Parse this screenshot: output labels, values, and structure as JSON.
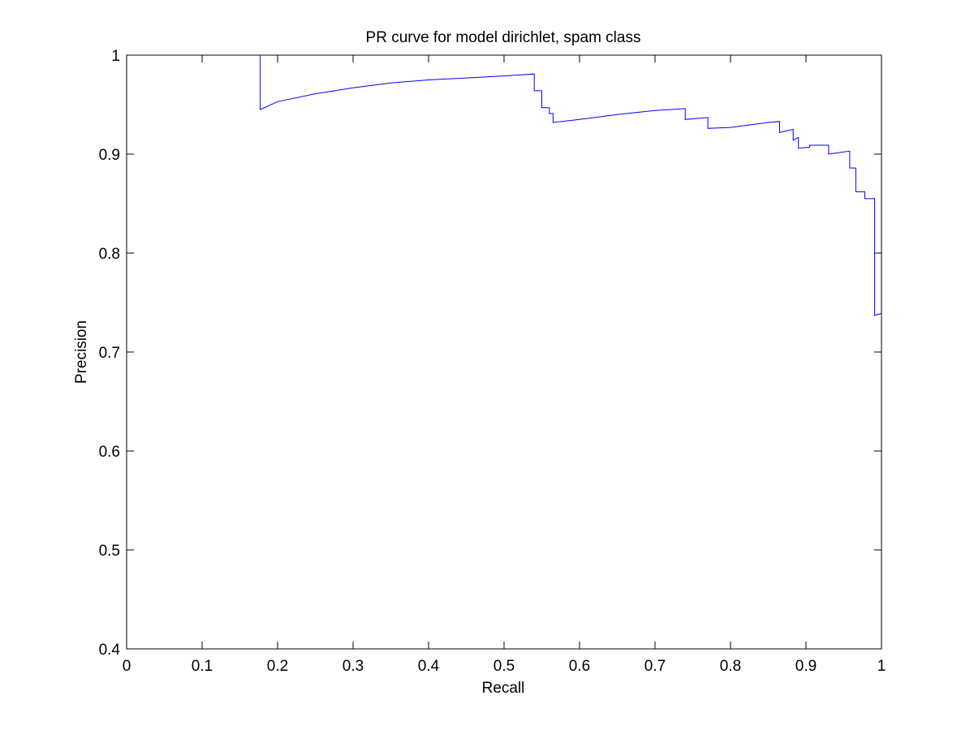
{
  "chart_data": {
    "type": "line",
    "title": "PR curve for model dirichlet, spam class",
    "xlabel": "Recall",
    "ylabel": "Precision",
    "xlim": [
      0,
      1
    ],
    "ylim": [
      0.4,
      1
    ],
    "xticks": [
      "0",
      "0.1",
      "0.2",
      "0.3",
      "0.4",
      "0.5",
      "0.6",
      "0.7",
      "0.8",
      "0.9",
      "1"
    ],
    "yticks": [
      "0.4",
      "0.5",
      "0.6",
      "0.7",
      "0.8",
      "0.9",
      "1"
    ],
    "grid": false,
    "line_color": "#0000ff",
    "series": [
      {
        "x": [
          0.177,
          0.177,
          0.2,
          0.25,
          0.3,
          0.35,
          0.4,
          0.45,
          0.5,
          0.54,
          0.54,
          0.55,
          0.55,
          0.56,
          0.56,
          0.565,
          0.565,
          0.6,
          0.65,
          0.7,
          0.74,
          0.74,
          0.77,
          0.77,
          0.8,
          0.85,
          0.865,
          0.865,
          0.883,
          0.883,
          0.89,
          0.89,
          0.905,
          0.905,
          0.93,
          0.93,
          0.958,
          0.958,
          0.966,
          0.966,
          0.978,
          0.978,
          0.988,
          0.988,
          0.991,
          0.991,
          1.0
        ],
        "y": [
          1.0,
          0.945,
          0.953,
          0.961,
          0.967,
          0.972,
          0.975,
          0.977,
          0.979,
          0.981,
          0.964,
          0.964,
          0.947,
          0.947,
          0.941,
          0.941,
          0.932,
          0.935,
          0.94,
          0.944,
          0.946,
          0.935,
          0.937,
          0.926,
          0.927,
          0.932,
          0.933,
          0.922,
          0.925,
          0.914,
          0.917,
          0.906,
          0.907,
          0.909,
          0.909,
          0.9,
          0.903,
          0.886,
          0.886,
          0.862,
          0.862,
          0.855,
          0.855,
          0.855,
          0.855,
          0.737,
          0.739
        ]
      }
    ]
  }
}
